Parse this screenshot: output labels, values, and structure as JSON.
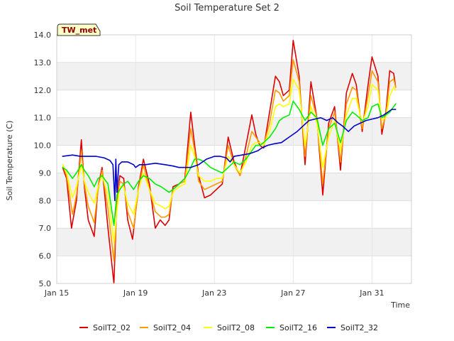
{
  "chart_data": {
    "type": "line",
    "title": "Soil Temperature Set 2",
    "xlabel": "Time",
    "ylabel": "Soil Temperature (C)",
    "station_badge": "TW_met",
    "ylim": [
      5.0,
      14.0
    ],
    "xlim": [
      0,
      18
    ],
    "x_unit": "days since Jan 15",
    "yticks": [
      5,
      6,
      7,
      8,
      9,
      10,
      11,
      12,
      13,
      14
    ],
    "ytick_labels": [
      "5.0",
      "6.0",
      "7.0",
      "8.0",
      "9.0",
      "10.0",
      "11.0",
      "12.0",
      "13.0",
      "14.0"
    ],
    "xticks": [
      0,
      4,
      8,
      12,
      16
    ],
    "xtick_labels": [
      "Jan 15",
      "Jan 19",
      "Jan 23",
      "Jan 27",
      "Jan 31"
    ],
    "grid": true,
    "legend_position": "bottom",
    "series": [
      {
        "name": "SoilT2_02",
        "color": "#dd0000",
        "x": [
          0.3,
          0.5,
          0.75,
          1.0,
          1.25,
          1.4,
          1.6,
          1.9,
          2.1,
          2.3,
          2.6,
          2.9,
          3.05,
          3.2,
          3.4,
          3.6,
          3.85,
          4.15,
          4.4,
          4.7,
          5.0,
          5.25,
          5.5,
          5.7,
          5.9,
          6.2,
          6.5,
          6.8,
          7.0,
          7.2,
          7.5,
          7.8,
          8.1,
          8.4,
          8.7,
          9.0,
          9.3,
          9.6,
          9.9,
          10.1,
          10.3,
          10.5,
          10.8,
          11.1,
          11.3,
          11.5,
          11.8,
          12.0,
          12.3,
          12.6,
          12.9,
          13.2,
          13.5,
          13.8,
          14.1,
          14.4,
          14.7,
          15.0,
          15.2,
          15.5,
          15.8,
          16.0,
          16.3,
          16.5,
          16.7,
          16.9,
          17.1,
          17.2
        ],
        "y": [
          9.2,
          8.8,
          7.0,
          8.0,
          10.2,
          8.5,
          7.3,
          6.7,
          8.5,
          9.2,
          7.0,
          5.0,
          8.0,
          8.9,
          8.8,
          7.3,
          6.6,
          8.5,
          9.5,
          8.6,
          7.0,
          7.3,
          7.1,
          7.3,
          8.5,
          8.6,
          8.8,
          11.2,
          10.0,
          8.9,
          8.1,
          8.2,
          8.4,
          8.6,
          10.3,
          9.4,
          8.9,
          10.0,
          11.1,
          10.4,
          10.0,
          9.9,
          11.2,
          12.5,
          12.3,
          11.8,
          12.0,
          13.8,
          12.5,
          9.3,
          12.3,
          11.0,
          8.2,
          10.8,
          11.4,
          9.1,
          11.9,
          12.6,
          12.2,
          10.5,
          12.2,
          13.2,
          12.5,
          10.4,
          11.2,
          12.7,
          12.6,
          12.1
        ]
      },
      {
        "name": "SoilT2_04",
        "color": "#ff9900",
        "x": [
          0.3,
          0.5,
          0.8,
          1.0,
          1.25,
          1.4,
          1.6,
          1.9,
          2.1,
          2.3,
          2.6,
          2.9,
          3.05,
          3.2,
          3.4,
          3.6,
          3.9,
          4.15,
          4.4,
          4.7,
          5.0,
          5.3,
          5.5,
          5.7,
          5.9,
          6.2,
          6.5,
          6.8,
          7.0,
          7.2,
          7.5,
          7.8,
          8.1,
          8.4,
          8.7,
          9.0,
          9.3,
          9.6,
          9.9,
          10.1,
          10.3,
          10.5,
          10.8,
          11.1,
          11.3,
          11.5,
          11.8,
          12.0,
          12.3,
          12.6,
          12.9,
          13.2,
          13.5,
          13.8,
          14.1,
          14.4,
          14.7,
          15.0,
          15.2,
          15.5,
          15.8,
          16.0,
          16.3,
          16.5,
          16.7,
          16.9,
          17.1,
          17.2
        ],
        "y": [
          9.3,
          8.9,
          7.5,
          8.2,
          9.8,
          8.6,
          7.8,
          7.2,
          8.4,
          9.1,
          7.7,
          5.8,
          7.8,
          8.7,
          8.6,
          7.6,
          7.0,
          8.4,
          9.3,
          8.4,
          7.6,
          7.4,
          7.4,
          7.5,
          8.4,
          8.6,
          8.7,
          10.6,
          9.8,
          8.7,
          8.4,
          8.5,
          8.6,
          8.7,
          10.0,
          9.3,
          8.9,
          9.6,
          10.5,
          10.3,
          10.1,
          10.0,
          10.8,
          12.0,
          11.9,
          11.6,
          11.8,
          13.1,
          12.3,
          9.6,
          11.8,
          11.0,
          8.6,
          10.6,
          11.2,
          9.4,
          11.5,
          12.1,
          12.0,
          10.6,
          11.8,
          12.7,
          12.3,
          10.6,
          11.1,
          12.3,
          12.4,
          12.1
        ]
      },
      {
        "name": "SoilT2_08",
        "color": "#ffff00",
        "x": [
          0.3,
          0.5,
          0.8,
          1.0,
          1.25,
          1.4,
          1.6,
          1.9,
          2.1,
          2.3,
          2.6,
          2.9,
          3.05,
          3.2,
          3.4,
          3.6,
          3.9,
          4.15,
          4.4,
          4.7,
          5.0,
          5.3,
          5.5,
          5.7,
          5.9,
          6.2,
          6.5,
          6.8,
          7.0,
          7.2,
          7.5,
          7.8,
          8.1,
          8.4,
          8.7,
          9.0,
          9.3,
          9.6,
          9.9,
          10.1,
          10.3,
          10.5,
          10.8,
          11.1,
          11.3,
          11.5,
          11.8,
          12.0,
          12.3,
          12.6,
          12.9,
          13.2,
          13.5,
          13.8,
          14.1,
          14.4,
          14.7,
          15.0,
          15.2,
          15.5,
          15.8,
          16.0,
          16.3,
          16.5,
          16.7,
          16.9,
          17.1,
          17.2
        ],
        "y": [
          9.3,
          9.0,
          8.1,
          8.5,
          9.3,
          8.7,
          8.3,
          7.9,
          8.5,
          8.9,
          8.2,
          6.5,
          7.6,
          8.5,
          8.5,
          7.9,
          7.5,
          8.4,
          9.0,
          8.4,
          7.9,
          7.8,
          7.7,
          7.8,
          8.3,
          8.5,
          8.6,
          10.0,
          9.6,
          8.9,
          8.7,
          8.7,
          8.8,
          8.8,
          9.6,
          9.3,
          9.0,
          9.4,
          10.0,
          10.1,
          10.1,
          10.0,
          10.5,
          11.4,
          11.5,
          11.4,
          11.5,
          12.4,
          12.0,
          10.0,
          11.4,
          10.8,
          9.2,
          10.3,
          10.9,
          9.8,
          11.1,
          11.7,
          11.7,
          10.8,
          11.4,
          12.2,
          12.0,
          10.9,
          11.0,
          11.8,
          12.1,
          12.0
        ]
      },
      {
        "name": "SoilT2_16",
        "color": "#00ee00",
        "x": [
          0.3,
          0.5,
          0.8,
          1.0,
          1.25,
          1.4,
          1.6,
          1.9,
          2.1,
          2.3,
          2.6,
          2.9,
          3.05,
          3.2,
          3.4,
          3.6,
          3.9,
          4.15,
          4.4,
          4.7,
          5.0,
          5.3,
          5.5,
          5.7,
          5.9,
          6.2,
          6.5,
          6.8,
          7.0,
          7.2,
          7.5,
          7.8,
          8.1,
          8.4,
          8.7,
          9.0,
          9.3,
          9.6,
          9.9,
          10.1,
          10.3,
          10.5,
          10.8,
          11.1,
          11.3,
          11.5,
          11.8,
          12.0,
          12.3,
          12.6,
          12.9,
          13.2,
          13.5,
          13.8,
          14.1,
          14.4,
          14.7,
          15.0,
          15.2,
          15.5,
          15.8,
          16.0,
          16.3,
          16.5,
          16.7,
          16.9,
          17.1,
          17.2
        ],
        "y": [
          9.2,
          9.1,
          8.8,
          9.0,
          9.3,
          9.1,
          8.9,
          8.5,
          8.8,
          8.9,
          8.6,
          7.1,
          8.2,
          8.4,
          8.6,
          8.7,
          8.4,
          8.7,
          8.9,
          8.8,
          8.6,
          8.5,
          8.4,
          8.3,
          8.4,
          8.6,
          8.8,
          9.2,
          9.5,
          9.5,
          9.4,
          9.2,
          9.1,
          9.0,
          9.2,
          9.4,
          9.3,
          9.5,
          9.8,
          10.0,
          10.0,
          10.1,
          10.3,
          10.6,
          10.9,
          11.0,
          11.1,
          11.6,
          11.3,
          10.9,
          11.2,
          11.0,
          10.0,
          10.6,
          10.8,
          10.1,
          10.9,
          11.2,
          11.1,
          10.9,
          11.0,
          11.4,
          11.5,
          11.0,
          11.1,
          11.2,
          11.4,
          11.5
        ]
      },
      {
        "name": "SoilT2_32",
        "color": "#0000cc",
        "x": [
          0.3,
          0.8,
          1.2,
          1.6,
          2.0,
          2.4,
          2.7,
          2.85,
          2.95,
          3.0,
          3.05,
          3.15,
          3.3,
          3.6,
          3.9,
          4.0,
          4.2,
          4.5,
          5.0,
          5.5,
          5.9,
          6.2,
          6.5,
          6.8,
          7.2,
          7.6,
          8.0,
          8.3,
          8.6,
          8.8,
          9.0,
          9.4,
          9.8,
          10.2,
          10.4,
          10.7,
          11.0,
          11.4,
          11.8,
          12.2,
          12.5,
          12.8,
          13.1,
          13.4,
          13.7,
          14.0,
          14.3,
          14.5,
          14.8,
          15.1,
          15.4,
          15.7,
          16.0,
          16.3,
          16.6,
          16.8,
          17.0,
          17.2
        ],
        "y": [
          9.6,
          9.65,
          9.6,
          9.6,
          9.6,
          9.55,
          9.45,
          9.3,
          8.0,
          9.5,
          8.3,
          9.3,
          9.4,
          9.4,
          9.3,
          9.2,
          9.3,
          9.3,
          9.35,
          9.3,
          9.25,
          9.2,
          9.2,
          9.2,
          9.3,
          9.5,
          9.6,
          9.6,
          9.55,
          9.4,
          9.6,
          9.65,
          9.7,
          9.8,
          9.9,
          10.0,
          10.05,
          10.1,
          10.3,
          10.5,
          10.7,
          10.9,
          10.95,
          11.0,
          10.9,
          11.0,
          10.8,
          10.7,
          10.5,
          10.7,
          10.8,
          10.9,
          10.95,
          11.0,
          11.1,
          11.2,
          11.3,
          11.3
        ]
      }
    ]
  }
}
